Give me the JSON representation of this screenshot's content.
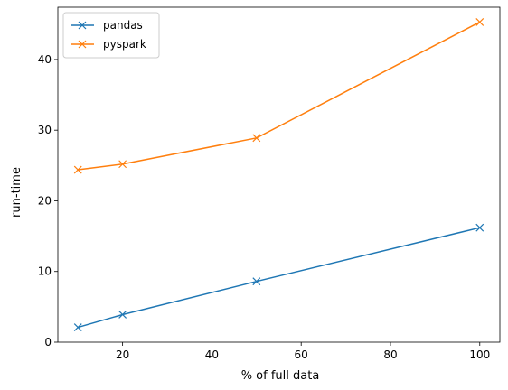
{
  "chart_data": {
    "type": "line",
    "title": "",
    "xlabel": "% of full data",
    "ylabel": "run-time",
    "x": [
      10,
      20,
      50,
      100
    ],
    "xlim": [
      5.5,
      104.5
    ],
    "ylim": [
      0,
      47.4
    ],
    "xticks": [
      20,
      40,
      60,
      80,
      100
    ],
    "yticks": [
      0,
      10,
      20,
      30,
      40
    ],
    "grid": false,
    "legend_position": "top-left",
    "marker": "x",
    "series": [
      {
        "name": "pandas",
        "color": "#1f77b4",
        "values": [
          2.1,
          3.9,
          8.6,
          16.2
        ]
      },
      {
        "name": "pyspark",
        "color": "#ff7f0e",
        "values": [
          24.4,
          25.2,
          28.9,
          45.3
        ]
      }
    ]
  }
}
